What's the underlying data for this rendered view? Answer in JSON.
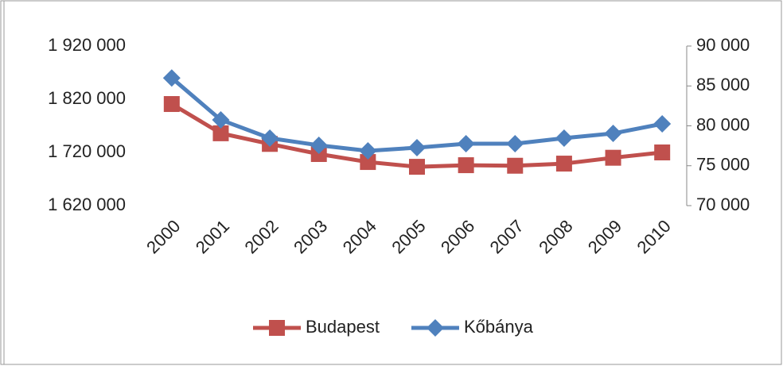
{
  "chart_data": {
    "type": "line",
    "categories": [
      "2000",
      "2001",
      "2002",
      "2003",
      "2004",
      "2005",
      "2006",
      "2007",
      "2008",
      "2009",
      "2010"
    ],
    "series": [
      {
        "name": "Budapest",
        "color": "#c0504d",
        "marker": "square",
        "axis": "y",
        "values": [
          1811000,
          1756000,
          1736000,
          1717000,
          1702000,
          1693000,
          1696000,
          1695000,
          1699000,
          1710000,
          1720000
        ]
      },
      {
        "name": "Kőbánya",
        "color": "#4f81bd",
        "marker": "diamond",
        "axis": "y2",
        "values": [
          86000,
          80750,
          78460,
          77560,
          76870,
          77260,
          77760,
          77760,
          78460,
          79050,
          80250
        ]
      }
    ],
    "ylim": [
      1620000,
      1920000
    ],
    "yticks": [
      {
        "value": 1620000,
        "label": "1 620 000"
      },
      {
        "value": 1720000,
        "label": "1 720 000"
      },
      {
        "value": 1820000,
        "label": "1 820 000"
      },
      {
        "value": 1920000,
        "label": "1 920 000"
      }
    ],
    "y2lim": [
      70000,
      90000
    ],
    "y2ticks": [
      {
        "value": 70000,
        "label": "70 000"
      },
      {
        "value": 75000,
        "label": "75 000"
      },
      {
        "value": 80000,
        "label": "80 000"
      },
      {
        "value": 85000,
        "label": "85 000"
      },
      {
        "value": 90000,
        "label": "90 000"
      }
    ],
    "legend": "bottom"
  }
}
